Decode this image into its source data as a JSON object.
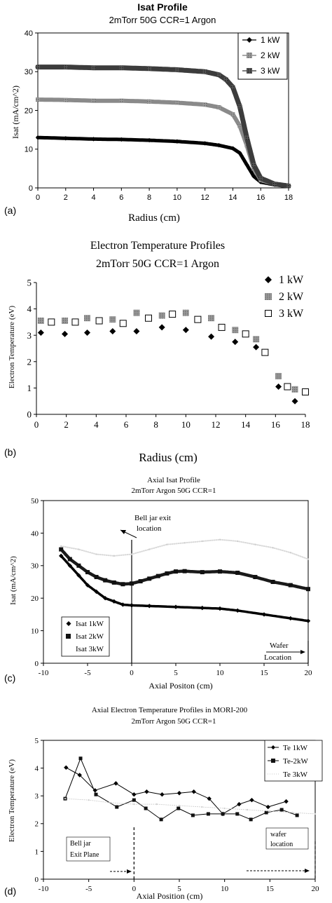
{
  "panels": [
    {
      "id": "a",
      "panel_label": "(a)",
      "chart_data": {
        "type": "line",
        "title": "Isat Profile",
        "subtitle": "2mTorr 50G CCR=1 Argon",
        "xlabel": "Radius (cm)",
        "ylabel": "Isat (mA/cm^2)",
        "xlim": [
          0,
          18
        ],
        "ylim": [
          0,
          40
        ],
        "xticks": [
          0,
          2,
          4,
          6,
          8,
          10,
          12,
          14,
          16,
          18
        ],
        "yticks": [
          0,
          10,
          20,
          30,
          40
        ],
        "grid": false,
        "legend": "top-right",
        "series": [
          {
            "name": "1 kW",
            "marker": "diamond",
            "x": [
              0,
              2,
              4,
              6,
              8,
              10,
              12,
              13,
              14,
              14.5,
              15,
              15.5,
              16,
              17,
              18
            ],
            "y": [
              13,
              12.8,
              12.6,
              12.5,
              12.3,
              12,
              11.5,
              11,
              10.2,
              9,
              6,
              3,
              1.5,
              0.8,
              0.5
            ]
          },
          {
            "name": "2 kW",
            "marker": "square-gray",
            "x": [
              0,
              2,
              4,
              6,
              8,
              10,
              12,
              13,
              14,
              14.5,
              15,
              15.5,
              16,
              17,
              18
            ],
            "y": [
              22.8,
              22.7,
              22.5,
              22.5,
              22.3,
              22,
              21.5,
              20.8,
              19,
              16,
              11,
              5,
              2,
              1,
              0.5
            ]
          },
          {
            "name": "3 kW",
            "marker": "square-dark",
            "x": [
              0,
              2,
              4,
              6,
              8,
              10,
              12,
              13,
              13.5,
              14,
              14.5,
              15,
              15.5,
              16,
              17,
              18
            ],
            "y": [
              31.2,
              31.2,
              31,
              31,
              30.8,
              30.5,
              30,
              29.2,
              28,
              26,
              21,
              13,
              6,
              2.5,
              1,
              0.5
            ]
          }
        ]
      }
    },
    {
      "id": "b",
      "panel_label": "(b)",
      "chart_data": {
        "type": "scatter",
        "title": "Electron Temperature Profiles",
        "subtitle": "2mTorr 50G CCR=1 Argon",
        "xlabel": "Radius (cm)",
        "ylabel": "Electron Temperature (eV)",
        "xlim": [
          0,
          18
        ],
        "ylim": [
          0,
          5
        ],
        "xticks": [
          0,
          2,
          4,
          6,
          8,
          10,
          12,
          14,
          16,
          18
        ],
        "yticks": [
          0,
          1,
          2,
          3,
          4,
          5
        ],
        "grid": false,
        "legend": "top-right",
        "series": [
          {
            "name": "1 kW",
            "marker": "diamond",
            "x": [
              0.3,
              1.9,
              3.4,
              5.1,
              6.7,
              8.4,
              10,
              11.7,
              13.3,
              14.7,
              16.2,
              17.3
            ],
            "y": [
              3.1,
              3.05,
              3.1,
              3.15,
              3.15,
              3.3,
              3.2,
              2.95,
              2.75,
              2.55,
              1.05,
              0.5
            ]
          },
          {
            "name": "2 kW",
            "marker": "square-gray",
            "x": [
              0.3,
              1.9,
              3.4,
              5.1,
              6.7,
              8.4,
              10,
              11.7,
              13.3,
              14.7,
              16.2,
              17.3
            ],
            "y": [
              3.55,
              3.55,
              3.65,
              3.6,
              3.85,
              3.75,
              3.85,
              3.65,
              3.2,
              2.85,
              1.45,
              0.95
            ]
          },
          {
            "name": "3 kW",
            "marker": "square-open",
            "x": [
              1,
              2.6,
              4.2,
              5.8,
              7.5,
              9.1,
              10.8,
              12.4,
              14,
              15.3,
              16.8,
              18
            ],
            "y": [
              3.5,
              3.5,
              3.55,
              3.45,
              3.65,
              3.8,
              3.6,
              3.3,
              3.05,
              2.35,
              1.05,
              0.85
            ]
          }
        ]
      }
    },
    {
      "id": "c",
      "panel_label": "(c)",
      "chart_data": {
        "type": "line",
        "title": "Axial Isat Profile",
        "subtitle": "2mTorr Argon 50G CCR=1",
        "xlabel": "Axial Positon (cm)",
        "ylabel": "Isat (mA/cm^2)",
        "xlim": [
          -10,
          20
        ],
        "ylim": [
          0,
          50
        ],
        "xticks": [
          -10,
          -5,
          0,
          5,
          10,
          15,
          20
        ],
        "yticks": [
          0,
          10,
          20,
          30,
          40,
          50
        ],
        "grid": false,
        "legend": "bottom-left",
        "series": [
          {
            "name": "Isat 1kW",
            "marker": "diamond",
            "x": [
              -8,
              -7,
              -6,
              -5,
              -4,
              -3,
              -2,
              -1,
              0,
              2,
              5,
              8,
              10,
              12,
              15,
              18,
              20
            ],
            "y": [
              33,
              30,
              27,
              24,
              22,
              20,
              19,
              18,
              17.8,
              17.6,
              17.3,
              17,
              16.8,
              16.2,
              15,
              13.8,
              13
            ]
          },
          {
            "name": "Isat 2kW",
            "marker": "square-dark",
            "x": [
              -8,
              -7,
              -6,
              -5,
              -4,
              -3,
              -2,
              -1,
              0,
              1,
              2,
              3,
              4,
              5,
              6,
              8,
              10,
              12,
              14,
              16,
              18,
              20
            ],
            "y": [
              35,
              32,
              30,
              28,
              26.5,
              25.5,
              24.8,
              24.3,
              24.5,
              25.2,
              26,
              26.8,
              27.6,
              28.2,
              28.3,
              28,
              28.2,
              27.8,
              26.5,
              25,
              24,
              22.8
            ]
          },
          {
            "name": "Isat 3kW",
            "marker": "faint",
            "x": [
              -8,
              -6,
              -4,
              -2,
              0,
              2,
              4,
              6,
              8,
              10,
              12,
              14,
              16,
              18,
              20
            ],
            "y": [
              36,
              35,
              33.5,
              33,
              33.5,
              35,
              36.5,
              37,
              37.5,
              38,
              37.5,
              36.5,
              35.5,
              34,
              32
            ]
          }
        ],
        "annotations": [
          {
            "text": "Bell jar exit location",
            "x": 0
          },
          {
            "text": "Wafer Location",
            "x": 20
          }
        ]
      }
    },
    {
      "id": "d",
      "panel_label": "(d)",
      "chart_data": {
        "type": "line",
        "title": "Axial Electron Temperature Profiles in MORI-200",
        "subtitle": "2mTorr Argon 50G CCR=1",
        "xlabel": "Axial Position (cm)",
        "ylabel": "Electron Temperature (eV)",
        "xlim": [
          -10,
          20
        ],
        "ylim": [
          0,
          5
        ],
        "xticks": [
          -10,
          -5,
          0,
          5,
          10,
          15,
          20
        ],
        "yticks": [
          0,
          1,
          2,
          3,
          4,
          5
        ],
        "grid": false,
        "legend": "top-right",
        "series": [
          {
            "name": "Te 1kW",
            "marker": "diamond",
            "x": [
              -7.5,
              -6,
              -4.3,
              -2,
              0,
              1.4,
              3.1,
              5,
              6.6,
              8.3,
              9.8,
              11.6,
              13,
              14.8,
              16.8
            ],
            "y": [
              4.02,
              3.75,
              3.2,
              3.45,
              3.05,
              3.15,
              3.05,
              3.1,
              3.15,
              2.9,
              2.35,
              2.7,
              2.85,
              2.6,
              2.8
            ]
          },
          {
            "name": "Te-2kW",
            "marker": "square-dark",
            "x": [
              -7.6,
              -5.9,
              -4.2,
              -1.9,
              0,
              1.3,
              3,
              4.9,
              6.5,
              8.2,
              9.8,
              11.4,
              12.9,
              14.6,
              16.3,
              18
            ],
            "y": [
              2.9,
              4.35,
              3.05,
              2.6,
              2.85,
              2.55,
              2.15,
              2.55,
              2.3,
              2.35,
              2.35,
              2.35,
              2.15,
              2.4,
              2.5,
              2.3
            ]
          },
          {
            "name": "Te 3kW",
            "marker": "faint",
            "x": [
              -7.6,
              -5,
              -2.5,
              0,
              2.5,
              5,
              7.5,
              10,
              12.5,
              15,
              17.5,
              20
            ],
            "y": [
              2.9,
              2.85,
              2.75,
              2.7,
              2.7,
              2.65,
              2.6,
              2.55,
              2.5,
              2.45,
              2.4,
              2.35
            ]
          }
        ],
        "annotations": [
          {
            "text": "Bell jar Exit Plane",
            "x": 0
          },
          {
            "text": "wafer location",
            "x": 20
          }
        ]
      }
    }
  ]
}
